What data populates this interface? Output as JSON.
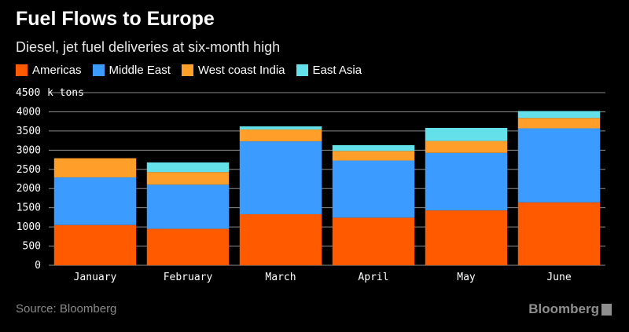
{
  "header": {
    "title": "Fuel Flows to Europe",
    "subtitle": "Diesel, jet fuel deliveries at six-month high"
  },
  "footer": {
    "source": "Source: Bloomberg",
    "brand": "Bloomberg"
  },
  "colors": {
    "Americas": "#ff5a00",
    "Middle East": "#3c9bff",
    "West coast India": "#ff9f2a",
    "East Asia": "#63e0ea",
    "grid": "#ffffff"
  },
  "chart_data": {
    "type": "bar",
    "stacked": true,
    "categories": [
      "January",
      "February",
      "March",
      "April",
      "May",
      "June"
    ],
    "series": [
      {
        "name": "Americas",
        "values": [
          1050,
          950,
          1330,
          1240,
          1430,
          1640
        ]
      },
      {
        "name": "Middle East",
        "values": [
          1240,
          1150,
          1900,
          1490,
          1500,
          1930
        ]
      },
      {
        "name": "West coast India",
        "values": [
          500,
          330,
          310,
          250,
          310,
          270
        ]
      },
      {
        "name": "East Asia",
        "values": [
          0,
          250,
          80,
          150,
          340,
          180
        ]
      }
    ],
    "ylim": [
      0,
      4500
    ],
    "yticks": [
      0,
      500,
      1000,
      1500,
      2000,
      2500,
      3000,
      3500,
      4000,
      4500
    ],
    "ylabel": "k tons",
    "grid": true,
    "legend": "top-left"
  }
}
